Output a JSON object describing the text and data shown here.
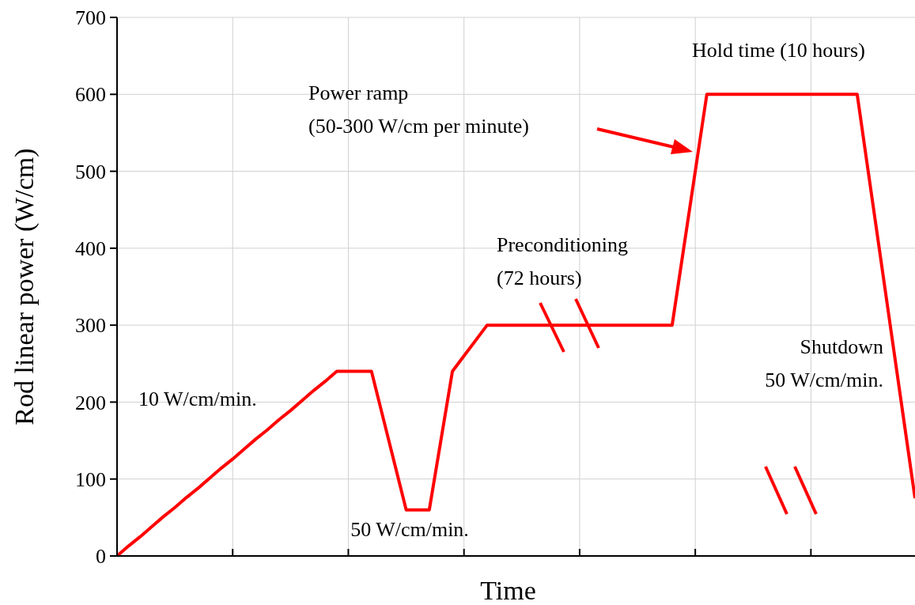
{
  "chart_data": {
    "type": "line",
    "xlabel": "Time",
    "ylabel": "Rod linear power (W/cm)",
    "categories": [
      null,
      null,
      null,
      null,
      null,
      null,
      null,
      null,
      null,
      null,
      null,
      null,
      null,
      null,
      null,
      null,
      null,
      null,
      null,
      null,
      null,
      null,
      null,
      null,
      null,
      null,
      null,
      null,
      null,
      null,
      null,
      null,
      null,
      null,
      null,
      null,
      null,
      null,
      null,
      null,
      null,
      null,
      null,
      null,
      null,
      null,
      null,
      null,
      null,
      null,
      null,
      null,
      null,
      null,
      null,
      null,
      null,
      null,
      null,
      null,
      null,
      null,
      null,
      null,
      null,
      null,
      null,
      null,
      null,
      null
    ],
    "series": [
      {
        "color": "#ff0000",
        "values": [
          0,
          13,
          25,
          38,
          51,
          63,
          76,
          88,
          101,
          114,
          126,
          139,
          152,
          164,
          177,
          189,
          202,
          215,
          227,
          240,
          240,
          240,
          240,
          180,
          120,
          60,
          60,
          60,
          150,
          240,
          260,
          280,
          300,
          300,
          300,
          300,
          300,
          300,
          300,
          300,
          300,
          300,
          300,
          300,
          300,
          300,
          300,
          300,
          300,
          400,
          500,
          600,
          600,
          600,
          600,
          600,
          600,
          600,
          600,
          600,
          600,
          600,
          600,
          600,
          600,
          495,
          390,
          285,
          180,
          75
        ]
      }
    ],
    "ylim": [
      0,
      700
    ],
    "yticks": [
      0,
      100,
      200,
      300,
      400,
      500,
      600,
      700
    ],
    "tick_labels": "y",
    "grid": true,
    "marker": "none",
    "line_style": "solid",
    "annotations": [
      "10 W/cm/min.",
      "50 W/cm/min.",
      "Preconditioning\n(72 hours)",
      "Power ramp\n(50-300 W/cm per minute)",
      "Hold time (10 hours)",
      "Shutdown\n50 W/cm/min."
    ]
  }
}
